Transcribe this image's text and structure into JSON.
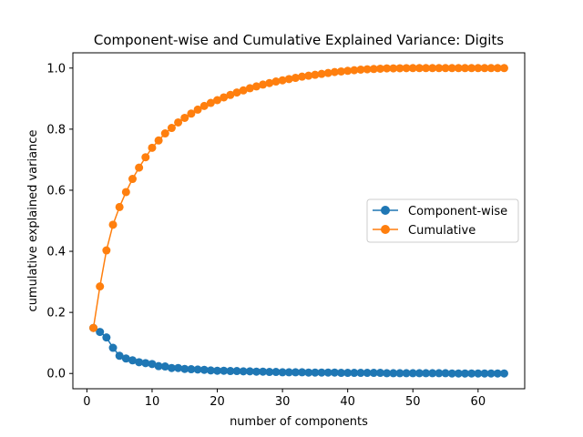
{
  "chart_data": {
    "type": "line",
    "title": "Component-wise and Cumulative Explained Variance: Digits",
    "xlabel": "number of components",
    "ylabel": "cumulative explained variance",
    "xlim": [
      -2.15,
      67.15
    ],
    "ylim": [
      -0.05,
      1.05
    ],
    "xticks": [
      0,
      10,
      20,
      30,
      40,
      50,
      60
    ],
    "yticks": [
      0.0,
      0.2,
      0.4,
      0.6,
      0.8,
      1.0
    ],
    "ytick_labels": [
      "0.0",
      "0.2",
      "0.4",
      "0.6",
      "0.8",
      "1.0"
    ],
    "grid": false,
    "legend_position": "center-right",
    "x": [
      1,
      2,
      3,
      4,
      5,
      6,
      7,
      8,
      9,
      10,
      11,
      12,
      13,
      14,
      15,
      16,
      17,
      18,
      19,
      20,
      21,
      22,
      23,
      24,
      25,
      26,
      27,
      28,
      29,
      30,
      31,
      32,
      33,
      34,
      35,
      36,
      37,
      38,
      39,
      40,
      41,
      42,
      43,
      44,
      45,
      46,
      47,
      48,
      49,
      50,
      51,
      52,
      53,
      54,
      55,
      56,
      57,
      58,
      59,
      60,
      61,
      62,
      63,
      64
    ],
    "series": [
      {
        "name": "Component-wise",
        "color": "#1f77b4",
        "values": [
          0.149,
          0.136,
          0.118,
          0.084,
          0.058,
          0.049,
          0.043,
          0.037,
          0.034,
          0.031,
          0.024,
          0.023,
          0.018,
          0.018,
          0.015,
          0.014,
          0.013,
          0.012,
          0.01,
          0.009,
          0.009,
          0.008,
          0.008,
          0.007,
          0.007,
          0.006,
          0.006,
          0.005,
          0.005,
          0.004,
          0.004,
          0.004,
          0.004,
          0.003,
          0.003,
          0.003,
          0.003,
          0.003,
          0.002,
          0.002,
          0.002,
          0.002,
          0.002,
          0.002,
          0.002,
          0.001,
          0.001,
          0.001,
          0.001,
          0.001,
          0.001,
          0.001,
          0.001,
          0.001,
          0.001,
          0.0,
          0.0,
          0.0,
          0.0,
          0.0,
          0.0,
          0.0,
          0.0,
          0.0
        ]
      },
      {
        "name": "Cumulative",
        "color": "#ff7f0e",
        "values": [
          0.149,
          0.285,
          0.403,
          0.487,
          0.545,
          0.594,
          0.637,
          0.674,
          0.708,
          0.739,
          0.763,
          0.786,
          0.804,
          0.822,
          0.837,
          0.851,
          0.864,
          0.876,
          0.886,
          0.895,
          0.904,
          0.912,
          0.92,
          0.927,
          0.934,
          0.94,
          0.946,
          0.951,
          0.956,
          0.96,
          0.964,
          0.968,
          0.972,
          0.975,
          0.978,
          0.981,
          0.984,
          0.987,
          0.989,
          0.991,
          0.993,
          0.995,
          0.996,
          0.997,
          0.998,
          0.999,
          0.999,
          0.9995,
          0.9998,
          1.0,
          1.0,
          1.0,
          1.0,
          1.0,
          1.0,
          1.0,
          1.0,
          1.0,
          1.0,
          1.0,
          1.0,
          1.0,
          1.0,
          1.0
        ]
      }
    ]
  }
}
